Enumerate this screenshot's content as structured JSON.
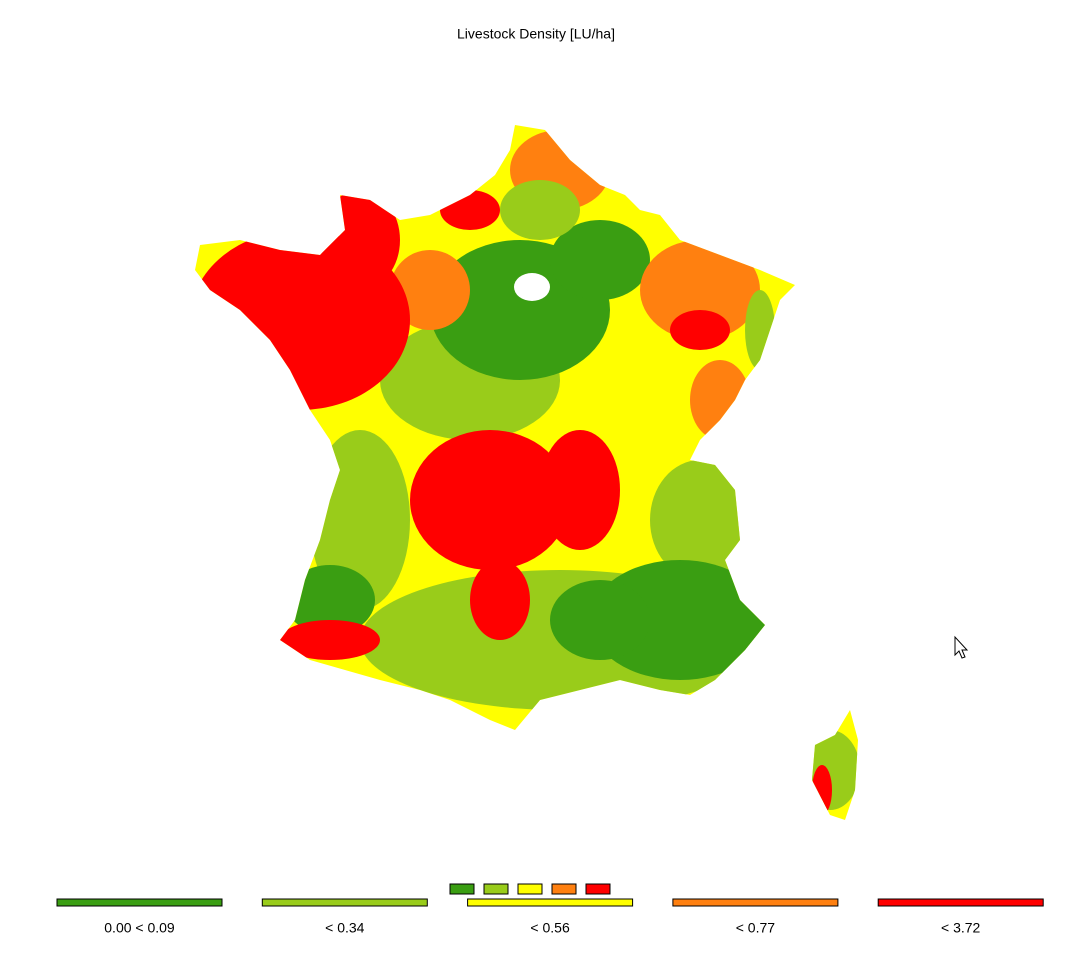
{
  "title": "Livestock Density [LU/ha]",
  "legend": {
    "classes": [
      {
        "label": "0.00 < 0.09",
        "color": "#3a9e12"
      },
      {
        "label": "< 0.34",
        "color": "#99cc1a"
      },
      {
        "label": "< 0.56",
        "color": "#ffff00"
      },
      {
        "label": "< 0.77",
        "color": "#ff8010"
      },
      {
        "label": "< 3.72",
        "color": "#ff0000"
      }
    ]
  }
}
